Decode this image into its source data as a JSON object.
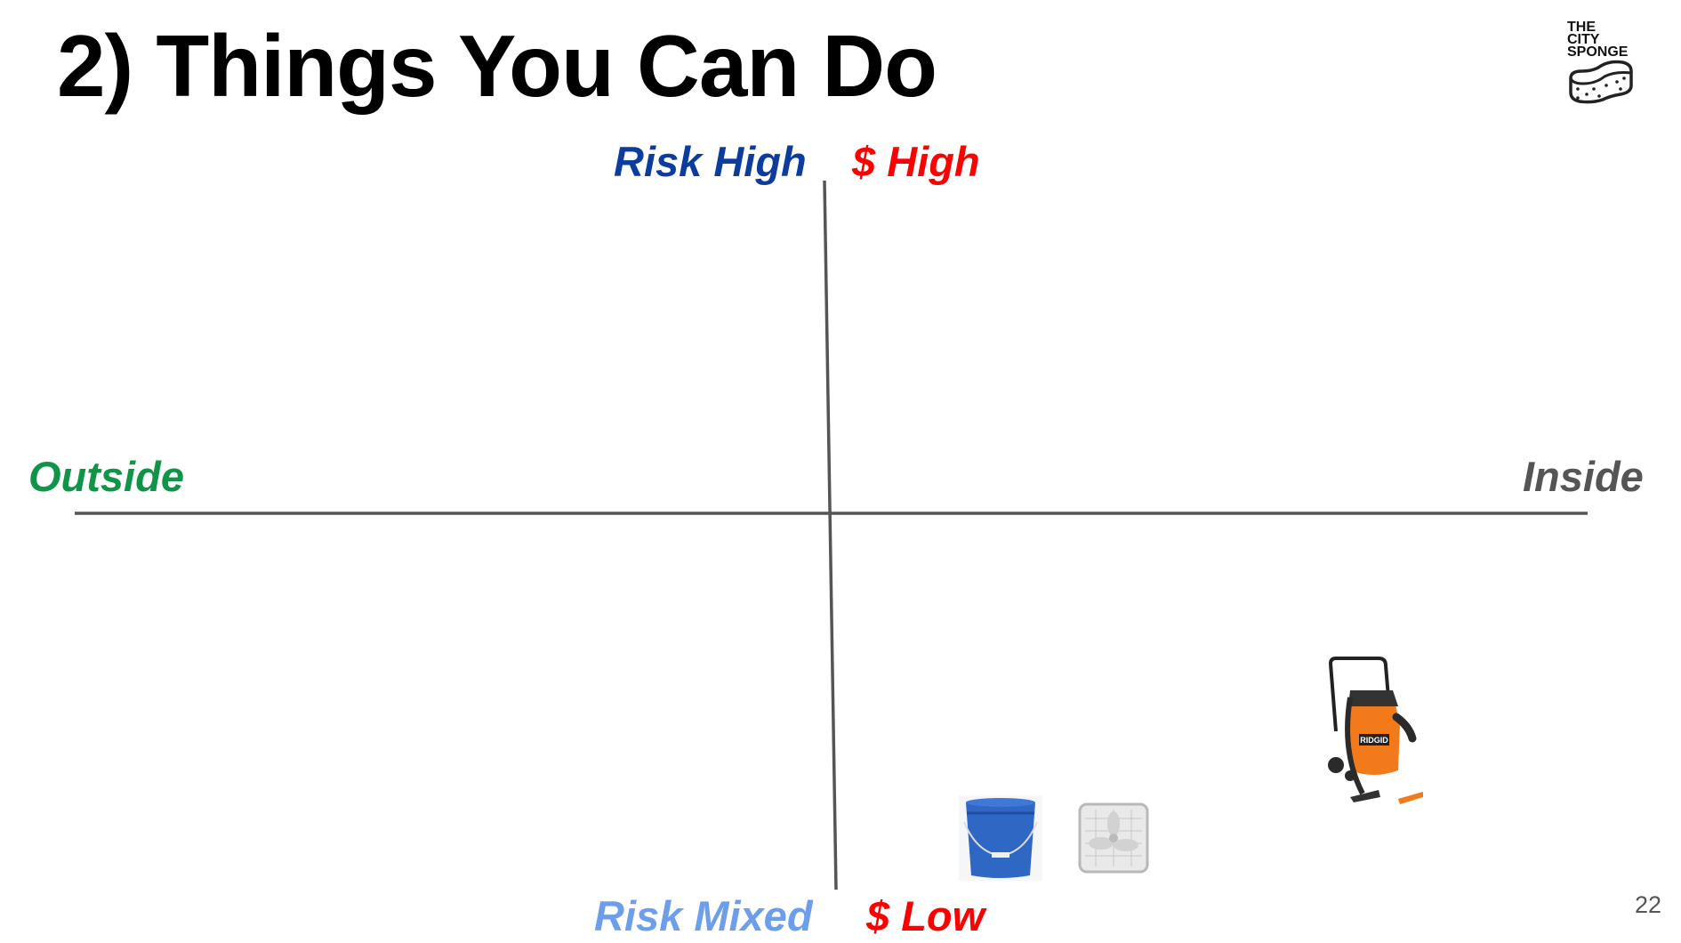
{
  "title": "2) Things You Can Do",
  "logo": {
    "lines": [
      "THE",
      "CITY",
      "SPONGE"
    ]
  },
  "quadrant": {
    "top_left_label": "Risk High",
    "top_right_label": "$ High",
    "left_label": "Outside",
    "right_label": "Inside",
    "bottom_left_label": "Risk Mixed",
    "bottom_right_label": "$ Low"
  },
  "items": [
    {
      "name": "bucket"
    },
    {
      "name": "box-fan"
    },
    {
      "name": "wet-dry-vacuum",
      "brand": "RIDGID"
    }
  ],
  "colors": {
    "risk_high": "#0b3c9e",
    "money": "#ff0000",
    "outside": "#0f9448",
    "inside": "#555555",
    "risk_mixed": "#6d9eeb",
    "axis": "#555555"
  },
  "page_number": "22"
}
